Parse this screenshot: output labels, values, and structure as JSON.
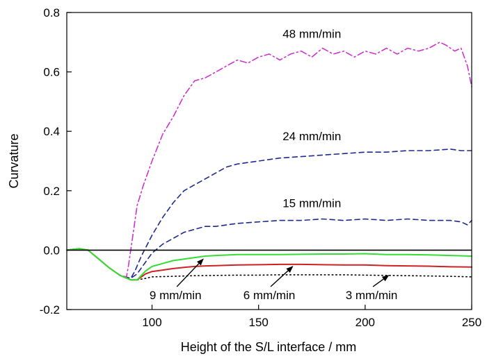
{
  "chart_data": {
    "type": "line",
    "title": "",
    "xlabel": "Height of the S/L interface / mm",
    "ylabel": "Curvature",
    "xlim": [
      60,
      250
    ],
    "ylim": [
      -0.2,
      0.8
    ],
    "x_ticks": [
      "100",
      "150",
      "200",
      "250"
    ],
    "x_tick_values": [
      100,
      150,
      200,
      250
    ],
    "y_ticks": [
      "-0.2",
      "0.0",
      "0.2",
      "0.4",
      "0.6",
      "0.8"
    ],
    "y_tick_values": [
      -0.2,
      0.0,
      0.2,
      0.4,
      0.6,
      0.8
    ],
    "zero_line": true,
    "grid": false,
    "series": [
      {
        "name": "48 mm/min",
        "color": "#cc33cc",
        "dash": "dashdot",
        "x": [
          60,
          66,
          70,
          75,
          80,
          85,
          88,
          89,
          91,
          93,
          96,
          100,
          105,
          110,
          115,
          120,
          125,
          130,
          135,
          140,
          145,
          150,
          155,
          160,
          165,
          170,
          175,
          180,
          185,
          190,
          195,
          200,
          205,
          210,
          215,
          220,
          225,
          230,
          235,
          238,
          242,
          245,
          248,
          250
        ],
        "y": [
          0.0,
          0.005,
          0.0,
          -0.03,
          -0.06,
          -0.085,
          -0.09,
          -0.05,
          0.05,
          0.15,
          0.22,
          0.3,
          0.39,
          0.45,
          0.52,
          0.57,
          0.58,
          0.6,
          0.62,
          0.64,
          0.63,
          0.65,
          0.66,
          0.64,
          0.66,
          0.67,
          0.65,
          0.68,
          0.66,
          0.67,
          0.65,
          0.67,
          0.66,
          0.68,
          0.66,
          0.68,
          0.67,
          0.68,
          0.7,
          0.69,
          0.67,
          0.68,
          0.62,
          0.55
        ]
      },
      {
        "name": "24 mm/min",
        "color": "#1c2a8c",
        "dash": "dashed",
        "x": [
          60,
          66,
          70,
          75,
          80,
          85,
          90,
          92,
          95,
          100,
          105,
          110,
          115,
          120,
          125,
          130,
          135,
          140,
          150,
          160,
          170,
          180,
          190,
          200,
          210,
          220,
          230,
          240,
          245,
          250
        ],
        "y": [
          0.0,
          0.005,
          0.0,
          -0.03,
          -0.06,
          -0.085,
          -0.095,
          -0.07,
          -0.02,
          0.05,
          0.11,
          0.16,
          0.2,
          0.22,
          0.24,
          0.26,
          0.28,
          0.29,
          0.3,
          0.31,
          0.315,
          0.32,
          0.325,
          0.33,
          0.33,
          0.335,
          0.335,
          0.34,
          0.335,
          0.335
        ]
      },
      {
        "name": "15 mm/min",
        "color": "#1c2a8c",
        "dash": "dashed",
        "x": [
          60,
          66,
          70,
          75,
          80,
          85,
          90,
          93,
          97,
          100,
          105,
          110,
          115,
          120,
          125,
          130,
          135,
          140,
          150,
          160,
          170,
          180,
          190,
          200,
          210,
          220,
          230,
          240,
          245,
          248,
          250
        ],
        "y": [
          0.0,
          0.005,
          0.0,
          -0.03,
          -0.06,
          -0.085,
          -0.095,
          -0.08,
          -0.04,
          -0.01,
          0.02,
          0.04,
          0.06,
          0.07,
          0.08,
          0.08,
          0.085,
          0.09,
          0.095,
          0.1,
          0.1,
          0.105,
          0.1,
          0.105,
          0.1,
          0.105,
          0.1,
          0.1,
          0.095,
          0.085,
          0.1
        ]
      },
      {
        "name": "9 mm/min",
        "color": "#33dd33",
        "dash": "solid",
        "x": [
          60,
          66,
          70,
          75,
          80,
          85,
          90,
          93,
          95,
          97,
          100,
          105,
          110,
          115,
          120,
          125,
          130,
          140,
          150,
          160,
          170,
          180,
          190,
          200,
          210,
          220,
          230,
          240,
          250
        ],
        "y": [
          0.0,
          0.005,
          0.0,
          -0.03,
          -0.06,
          -0.085,
          -0.1,
          -0.1,
          -0.085,
          -0.07,
          -0.055,
          -0.045,
          -0.035,
          -0.03,
          -0.025,
          -0.02,
          -0.018,
          -0.015,
          -0.015,
          -0.015,
          -0.014,
          -0.013,
          -0.013,
          -0.012,
          -0.015,
          -0.015,
          -0.016,
          -0.018,
          -0.02
        ]
      },
      {
        "name": "6 mm/min",
        "color": "#cc2222",
        "dash": "solid",
        "x": [
          60,
          66,
          70,
          75,
          80,
          85,
          90,
          93,
          95,
          97,
          100,
          105,
          110,
          115,
          120,
          125,
          130,
          140,
          150,
          160,
          170,
          180,
          190,
          200,
          210,
          220,
          230,
          240,
          250
        ],
        "y": [
          0.0,
          0.005,
          0.0,
          -0.03,
          -0.06,
          -0.085,
          -0.1,
          -0.1,
          -0.09,
          -0.08,
          -0.072,
          -0.067,
          -0.062,
          -0.058,
          -0.055,
          -0.053,
          -0.052,
          -0.05,
          -0.049,
          -0.048,
          -0.048,
          -0.049,
          -0.05,
          -0.05,
          -0.052,
          -0.053,
          -0.054,
          -0.056,
          -0.057
        ]
      },
      {
        "name": "3 mm/min",
        "color": "#000000",
        "dash": "dotted",
        "x": [
          60,
          66,
          70,
          75,
          80,
          85,
          90,
          93,
          97,
          100,
          110,
          120,
          130,
          140,
          150,
          160,
          170,
          180,
          190,
          200,
          210,
          220,
          230,
          240,
          250
        ],
        "y": [
          0.0,
          0.005,
          0.0,
          -0.03,
          -0.06,
          -0.085,
          -0.1,
          -0.1,
          -0.095,
          -0.09,
          -0.088,
          -0.086,
          -0.085,
          -0.084,
          -0.084,
          -0.083,
          -0.083,
          -0.083,
          -0.083,
          -0.084,
          -0.085,
          -0.086,
          -0.087,
          -0.088,
          -0.09
        ]
      }
    ],
    "annotations": [
      {
        "text": "48 mm/min",
        "x": 175,
        "y": 0.715
      },
      {
        "text": "24 mm/min",
        "x": 175,
        "y": 0.37
      },
      {
        "text": "15 mm/min",
        "x": 175,
        "y": 0.145
      },
      {
        "text": "9 mm/min",
        "x": 111,
        "y": -0.165,
        "arrow_to": [
          124,
          -0.03
        ]
      },
      {
        "text": "6 mm/min",
        "x": 155,
        "y": -0.165,
        "arrow_to": [
          166,
          -0.055
        ]
      },
      {
        "text": "3 mm/min",
        "x": 203,
        "y": -0.165,
        "arrow_to": [
          211,
          -0.085
        ]
      }
    ]
  }
}
